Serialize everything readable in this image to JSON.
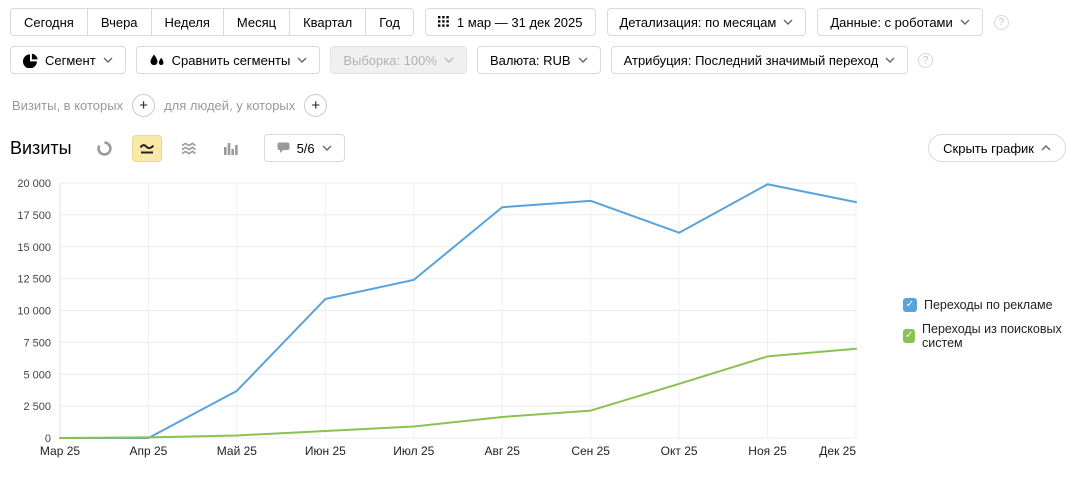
{
  "toolbar": {
    "periods": [
      "Сегодня",
      "Вчера",
      "Неделя",
      "Месяц",
      "Квартал",
      "Год"
    ],
    "date_range": "1 мар — 31 дек 2025",
    "detail": "Детализация: по месяцам",
    "data_mode": "Данные: с роботами"
  },
  "filters": {
    "segment": "Сегмент",
    "compare": "Сравнить сегменты",
    "sampling": "Выборка: 100%",
    "currency": "Валюта: RUB",
    "attribution": "Атрибуция: Последний значимый переход"
  },
  "conditions": {
    "visits_label": "Визиты, в которых",
    "people_label": "для людей, у которых"
  },
  "chart_header": {
    "title": "Визиты",
    "comments_label": "5/6",
    "hide_chart_label": "Скрыть график"
  },
  "ui": {
    "help_glyph": "?",
    "plus_glyph": "+",
    "check_glyph": "✓"
  },
  "chart_data": {
    "type": "line",
    "title": "Визиты",
    "categories": [
      "Мар 25",
      "Апр 25",
      "Май 25",
      "Июн 25",
      "Июл 25",
      "Авг 25",
      "Сен 25",
      "Окт 25",
      "Ноя 25",
      "Дек 25"
    ],
    "series": [
      {
        "name": "Переходы по рекламе",
        "color": "#58a3dc",
        "checked": true,
        "values": [
          0,
          0,
          3700,
          10900,
          12400,
          18100,
          18600,
          16100,
          19900,
          18500
        ]
      },
      {
        "name": "Переходы из поисковых систем",
        "color": "#8bc152",
        "checked": true,
        "values": [
          0,
          50,
          200,
          550,
          900,
          1650,
          2150,
          4250,
          6400,
          7000
        ]
      }
    ],
    "ylim": [
      0,
      20000
    ],
    "y_ticks": {
      "values": [
        0,
        2500,
        5000,
        7500,
        10000,
        12500,
        15000,
        17500,
        20000
      ],
      "labels": [
        "0",
        "2 500",
        "5 000",
        "7 500",
        "10 000",
        "12 500",
        "15 000",
        "17 500",
        "20 000"
      ]
    },
    "grid": true,
    "legend_position": "right"
  }
}
